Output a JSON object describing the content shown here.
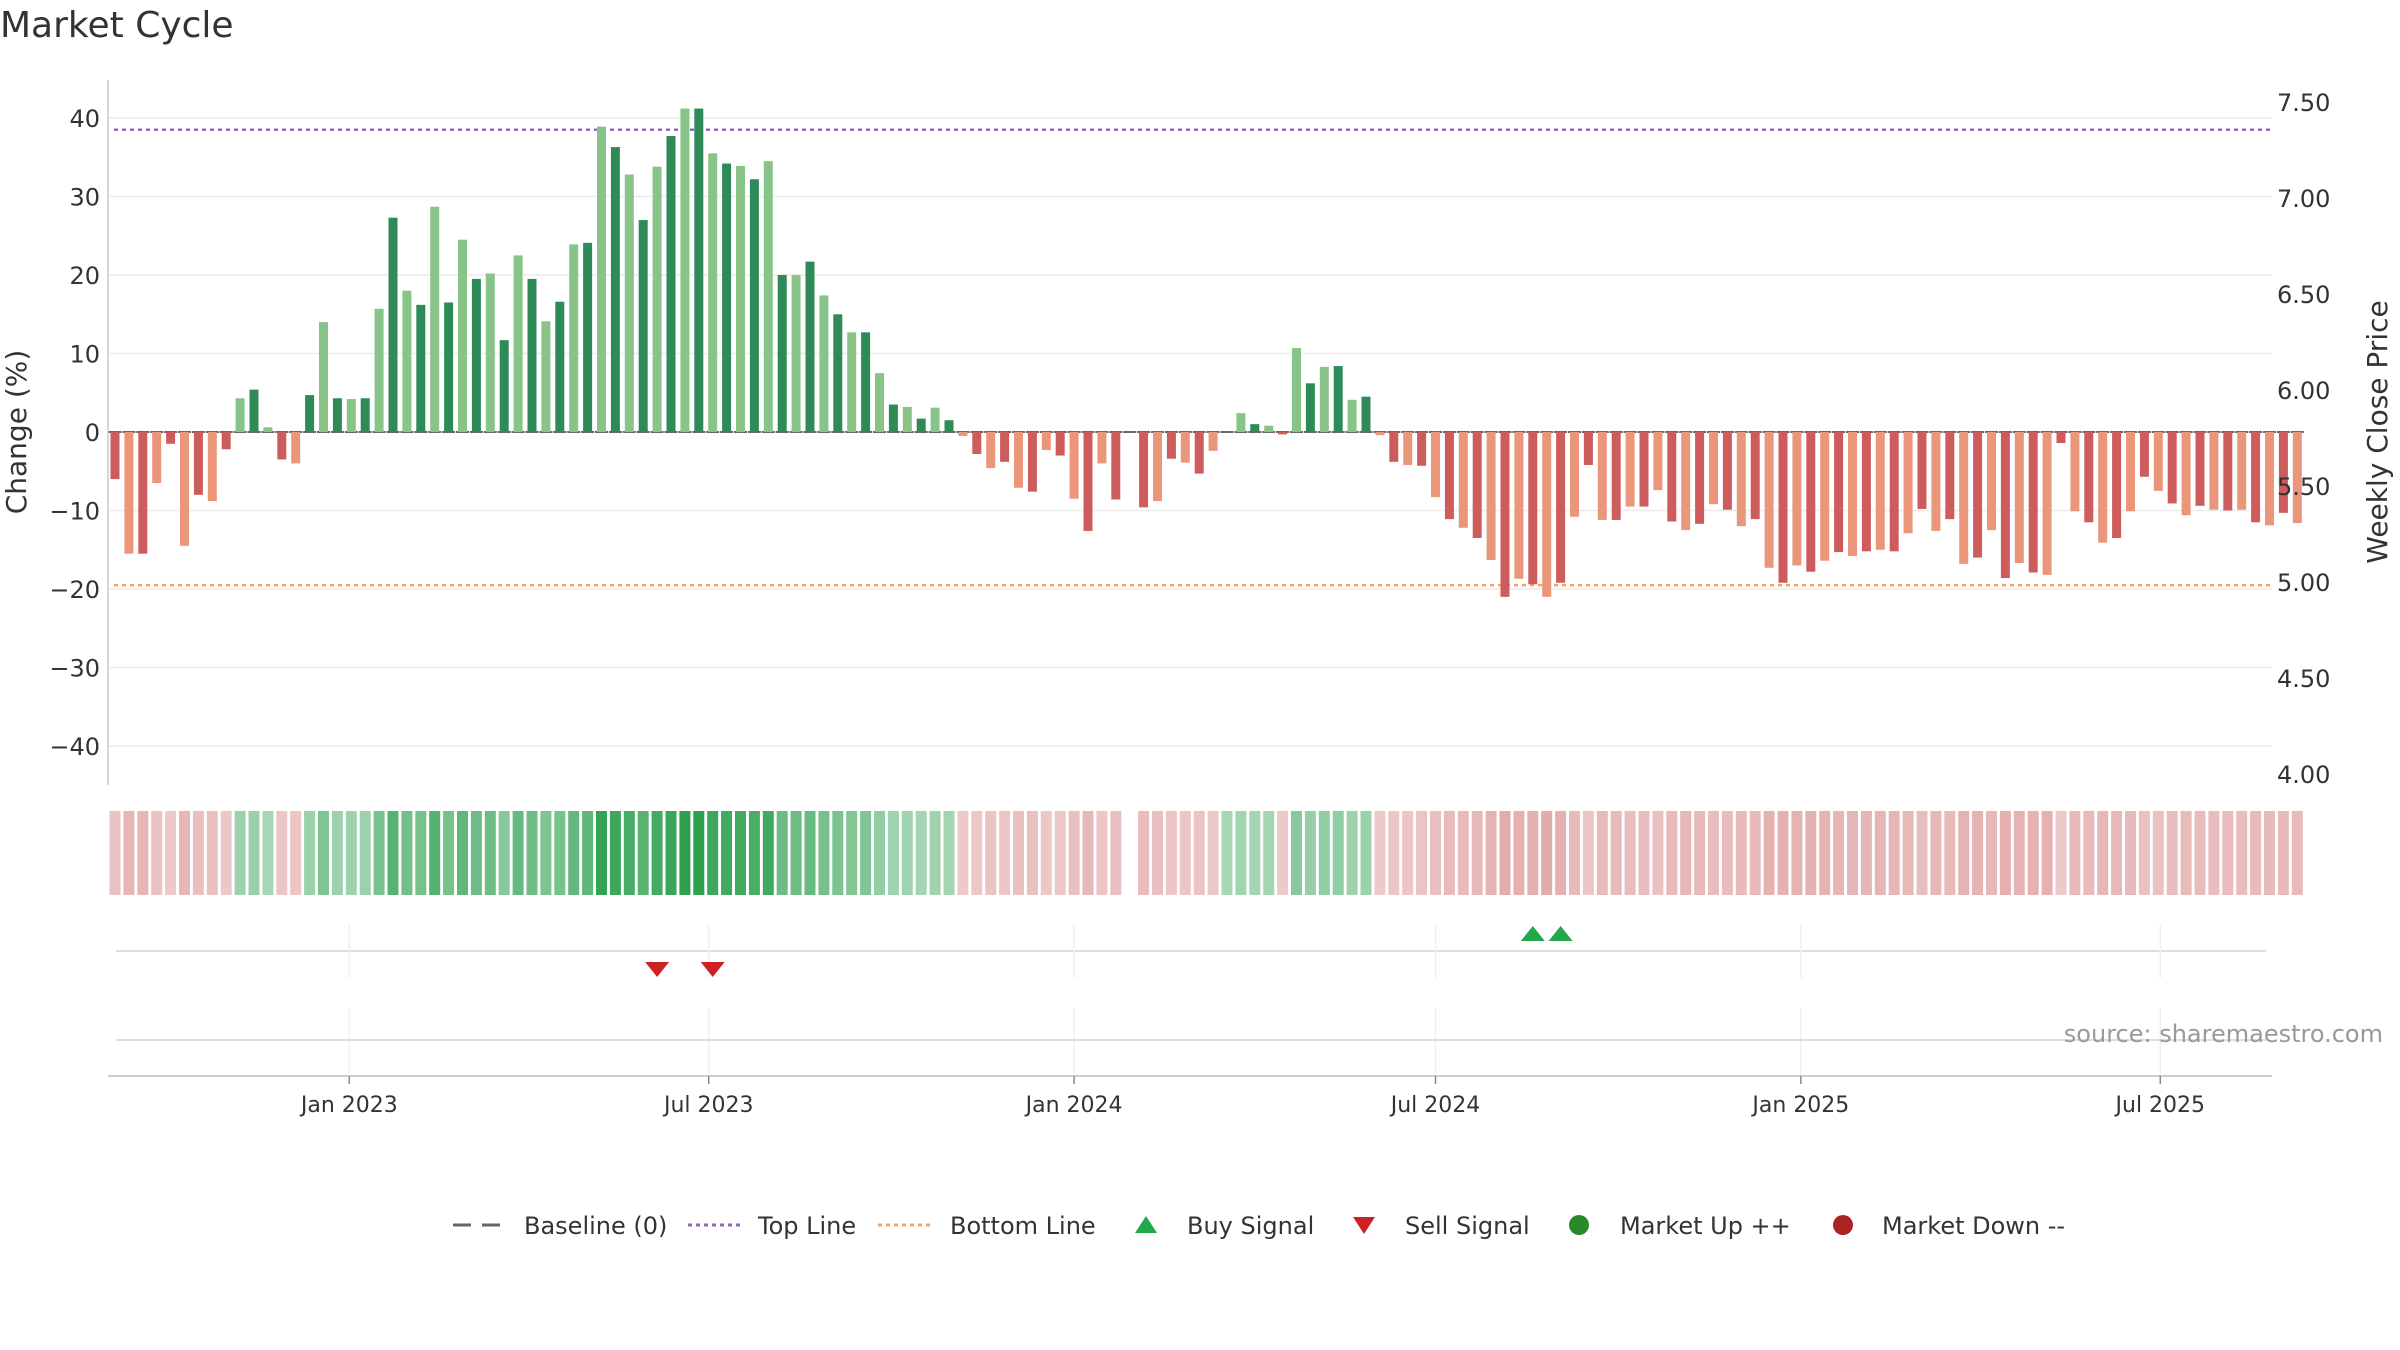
{
  "chart_data": {
    "type": "bar",
    "title": "Market Cycle",
    "ylabel": "Change (%)",
    "y2label": "Weekly Close Price",
    "ylim": [
      -45,
      45
    ],
    "y2lim": [
      4.0,
      7.6
    ],
    "yticks": [
      40,
      30,
      20,
      10,
      0,
      -10,
      -20,
      -30,
      -40
    ],
    "yticklabels": [
      "40",
      "30",
      "20",
      "10",
      "0",
      "−10",
      "−20",
      "−30",
      "−40"
    ],
    "y2ticks": [
      "7.50",
      "7.00",
      "6.50",
      "6.00",
      "5.50",
      "5.00",
      "4.50",
      "4.00"
    ],
    "x_start": "2022-09-05",
    "x_interval": "weekly",
    "xticks": [
      "Jan 2023",
      "Jul 2023",
      "Jan 2024",
      "Jul 2024",
      "Jan 2025",
      "Jul 2025"
    ],
    "top_line": 38.5,
    "bottom_line": -19.5,
    "baseline": 0,
    "values": [
      -6,
      -15.5,
      -15.5,
      -6.5,
      -1.5,
      -14.5,
      -8,
      -8.8,
      -2.2,
      4.3,
      5.4,
      0.6,
      -3.5,
      -4,
      4.7,
      14,
      4.3,
      4.2,
      4.3,
      15.7,
      27.3,
      18,
      16.2,
      28.7,
      16.5,
      24.5,
      19.5,
      20.2,
      11.7,
      22.5,
      19.5,
      14.1,
      16.6,
      23.9,
      24.1,
      38.9,
      36.3,
      32.8,
      27,
      33.8,
      37.7,
      41.2,
      41.2,
      35.5,
      34.2,
      33.9,
      32.2,
      34.5,
      20,
      20,
      21.7,
      17.4,
      15,
      12.7,
      12.7,
      7.5,
      3.5,
      3.2,
      1.7,
      3.1,
      1.5,
      -0.5,
      -2.8,
      -4.6,
      -3.8,
      -7.1,
      -7.6,
      -2.3,
      -3,
      -8.5,
      -12.6,
      -4,
      -8.6,
      0,
      -9.6,
      -8.8,
      -3.4,
      -3.9,
      -5.3,
      -2.4,
      0,
      2.4,
      1,
      0.8,
      -0.3,
      10.7,
      6.2,
      8.3,
      8.4,
      4.1,
      4.5,
      -0.4,
      -3.8,
      -4.2,
      -4.3,
      -8.3,
      -11.1,
      -12.2,
      -13.5,
      -16.3,
      -21,
      -18.7,
      -19.4,
      -21,
      -19.2,
      -10.8,
      -4.2,
      -11.2,
      -11.2,
      -9.5,
      -9.5,
      -7.4,
      -11.4,
      -12.5,
      -11.7,
      -9.2,
      -9.9,
      -12,
      -11.1,
      -17.3,
      -19.2,
      -17,
      -17.8,
      -16.4,
      -15.3,
      -15.8,
      -15.2,
      -15,
      -15.2,
      -12.9,
      -9.8,
      -12.6,
      -11.1,
      -16.8,
      -16,
      -12.5,
      -18.6,
      -16.7,
      -17.9,
      -18.2,
      -1.4,
      -10.1,
      -11.5,
      -14.1,
      -13.5,
      -10.1,
      -5.7,
      -7.5,
      -9.1,
      -10.6,
      -9.4,
      -9.9,
      -10,
      -9.9,
      -11.5,
      -11.9,
      -10.3,
      -11.6
    ],
    "gap_index": 73,
    "sell_signals": [
      "2023-06-05",
      "2023-07-03"
    ],
    "buy_signals": [
      "2024-08-19",
      "2024-09-02"
    ],
    "bar_colors": {
      "pos_strong": "#2e8b57",
      "pos_light": "#88c488",
      "neg_strong": "#cd5c5c",
      "neg_light": "#e9967a"
    },
    "signal_colors": {
      "buy": "#22a84a",
      "sell": "#cc2222"
    },
    "line_colors": {
      "top": "#9467bd",
      "bottom": "#f4a460",
      "baseline": "#666666"
    },
    "legend_position": "bottom-center",
    "grid": true
  },
  "source": "source: sharemaestro.com",
  "legend": [
    {
      "label": "Baseline (0)",
      "icon": "dash-line",
      "color": "#666666"
    },
    {
      "label": "Top Line",
      "icon": "dotted-line",
      "color": "#9467bd"
    },
    {
      "label": "Bottom Line",
      "icon": "dotted-line",
      "color": "#f4a460"
    },
    {
      "label": "Buy Signal",
      "icon": "triangle-up-icon",
      "color": "#22a84a"
    },
    {
      "label": "Sell Signal",
      "icon": "triangle-down-icon",
      "color": "#cc2222"
    },
    {
      "label": "Market Up ++",
      "icon": "circle-icon",
      "color": "#2a8a2a"
    },
    {
      "label": "Market Down --",
      "icon": "circle-icon",
      "color": "#aa2222"
    }
  ]
}
